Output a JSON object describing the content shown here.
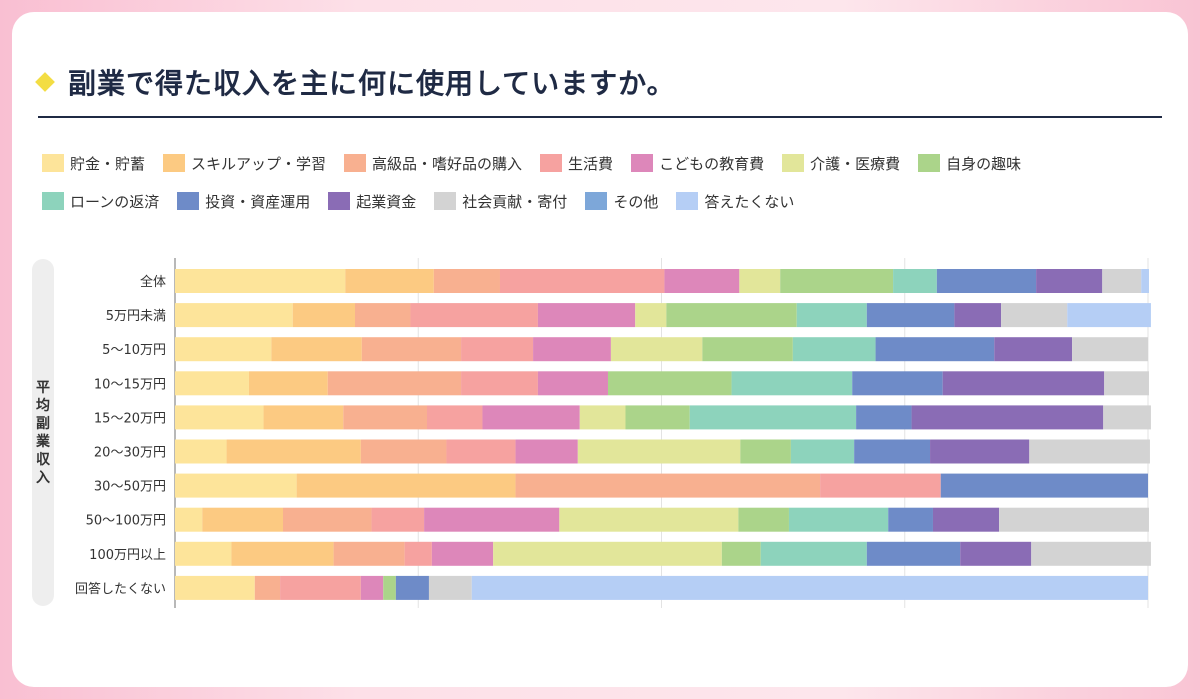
{
  "title": "副業で得た収入を主に何に使用していますか。",
  "icons": {
    "title_marker": "diamond-icon"
  },
  "colors": {
    "title": "#1f2a44",
    "marker": "#f3dd43"
  },
  "chart_data": {
    "type": "bar",
    "orientation": "horizontal",
    "stacked": true,
    "ylabel": "平均副業収入",
    "xlabel": "",
    "xlim": [
      0,
      100
    ],
    "grid": true,
    "legend_position": "top",
    "categories": [
      "全体",
      "5万円未満",
      "5〜10万円",
      "10〜15万円",
      "15〜20万円",
      "20〜30万円",
      "30〜50万円",
      "50〜100万円",
      "100万円以上",
      "回答したくない"
    ],
    "series": [
      {
        "name": "貯金・貯蓄",
        "color": "#fde49a",
        "values": [
          17.5,
          12.1,
          9.9,
          7.6,
          9.1,
          5.3,
          12.5,
          2.8,
          5.8,
          8.2
        ]
      },
      {
        "name": "スキルアップ・学習",
        "color": "#fcca82",
        "values": [
          9.1,
          6.4,
          9.3,
          8.1,
          8.2,
          13.8,
          22.5,
          8.3,
          10.5,
          0
        ]
      },
      {
        "name": "高級品・嗜好品の購入",
        "color": "#f8b090",
        "values": [
          6.8,
          5.7,
          10.2,
          13.7,
          8.6,
          8.8,
          31.3,
          9.1,
          7.3,
          2.6
        ]
      },
      {
        "name": "生活費",
        "color": "#f6a2a0",
        "values": [
          16.9,
          13.1,
          7.4,
          7.9,
          5.7,
          7.1,
          12.4,
          5.4,
          2.8,
          8.3
        ]
      },
      {
        "name": "こどもの教育費",
        "color": "#dd87ba",
        "values": [
          7.7,
          10.0,
          8.0,
          7.2,
          10.0,
          6.4,
          0,
          13.9,
          6.3,
          2.3
        ]
      },
      {
        "name": "介護・医療費",
        "color": "#e2e69a",
        "values": [
          4.2,
          3.2,
          9.4,
          0,
          4.7,
          16.7,
          0,
          18.4,
          23.5,
          0
        ]
      },
      {
        "name": "自身の趣味",
        "color": "#abd48a",
        "values": [
          11.6,
          13.4,
          9.3,
          12.7,
          6.6,
          5.2,
          0,
          5.2,
          4.0,
          1.3
        ]
      },
      {
        "name": "ローンの返済",
        "color": "#8dd3bc",
        "values": [
          4.5,
          7.2,
          8.5,
          12.4,
          17.1,
          6.5,
          0,
          10.2,
          10.9,
          0
        ]
      },
      {
        "name": "投資・資産運用",
        "color": "#6e8bc8",
        "values": [
          10.2,
          9.0,
          12.2,
          9.3,
          5.7,
          7.8,
          21.3,
          4.6,
          9.6,
          3.4
        ]
      },
      {
        "name": "起業資金",
        "color": "#8a6cb5",
        "values": [
          6.8,
          4.8,
          8.0,
          16.6,
          19.7,
          10.2,
          0,
          6.8,
          7.3,
          0
        ]
      },
      {
        "name": "社会貢献・寄付",
        "color": "#d3d3d3",
        "values": [
          4.0,
          6.8,
          7.8,
          4.6,
          4.9,
          12.4,
          0,
          15.4,
          12.3,
          4.4
        ]
      },
      {
        "name": "その他",
        "color": "#7da7d9",
        "values": [
          0,
          0,
          0,
          0,
          0,
          0,
          0,
          0,
          0,
          0
        ]
      },
      {
        "name": "答えたくない",
        "color": "#b5cef5",
        "values": [
          0.8,
          8.6,
          0,
          0,
          0,
          0,
          0,
          0,
          0,
          69.5
        ]
      }
    ]
  }
}
